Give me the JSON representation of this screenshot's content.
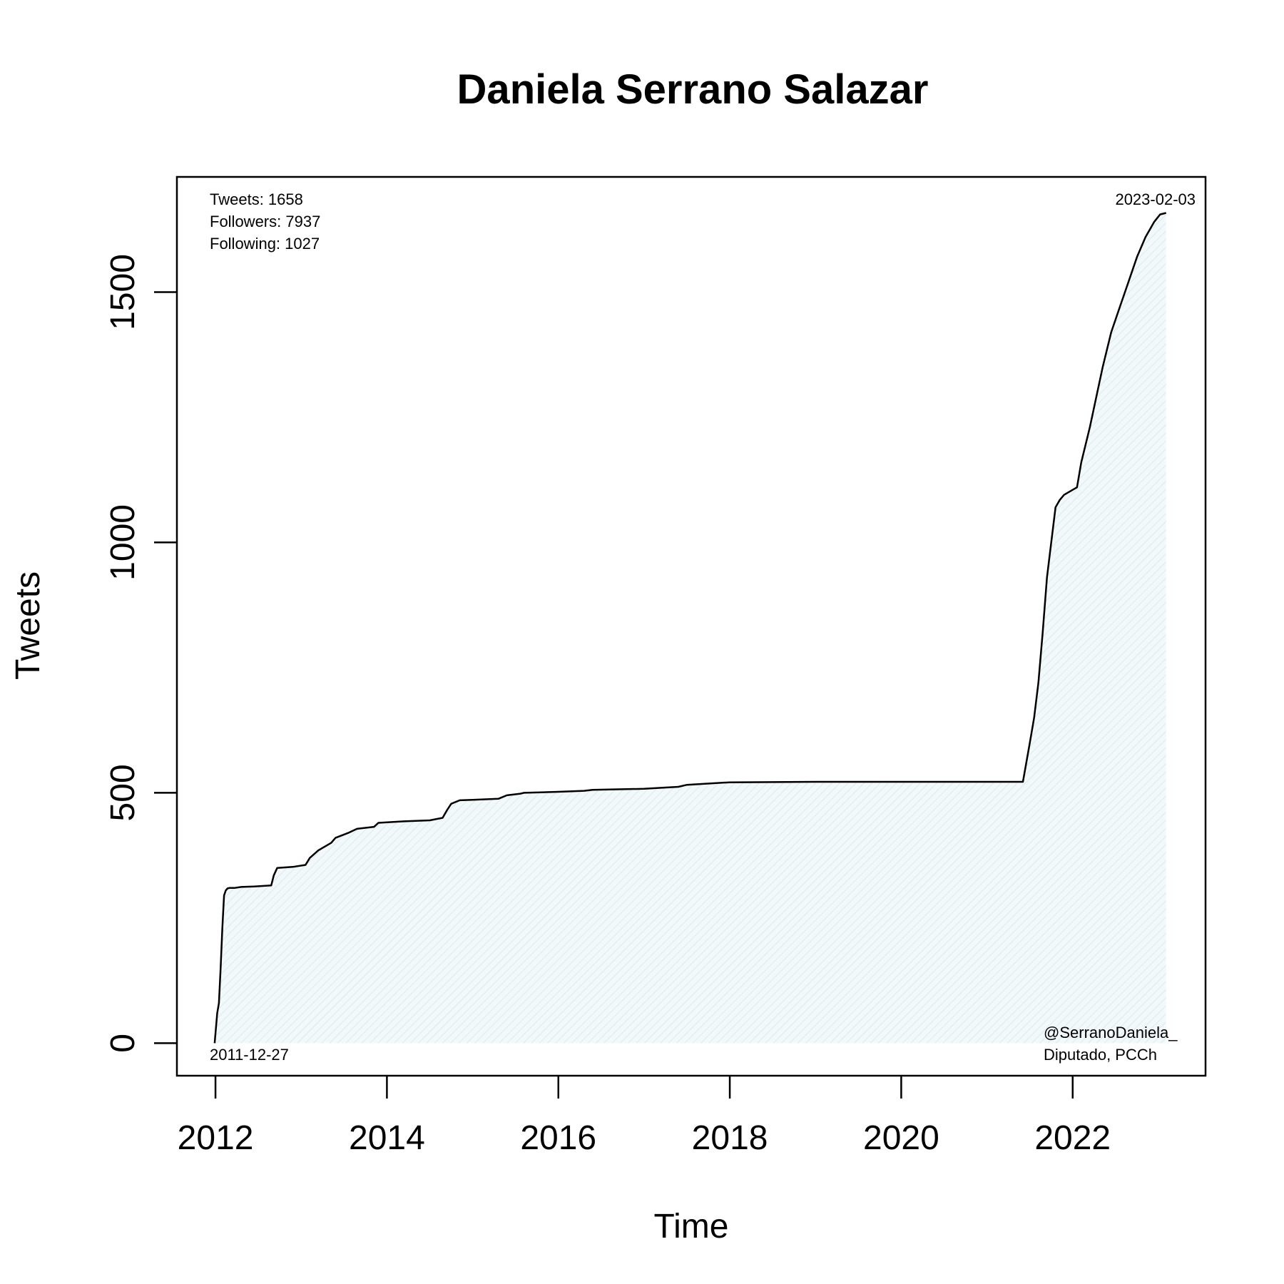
{
  "chart_data": {
    "type": "area",
    "title": "Daniela Serrano Salazar",
    "xlabel": "Time",
    "ylabel": "Tweets",
    "xlim": [
      2011.55,
      2023.55
    ],
    "ylim": [
      -65,
      1730
    ],
    "x_ticks": [
      2012,
      2014,
      2016,
      2018,
      2020,
      2022
    ],
    "x_tick_labels": [
      "2012",
      "2014",
      "2016",
      "2018",
      "2020",
      "2022"
    ],
    "y_ticks": [
      0,
      500,
      1000,
      1500
    ],
    "y_tick_labels": [
      "0",
      "500",
      "1000",
      "1500"
    ],
    "grid": false,
    "line_color": "#000000",
    "fill_color": "#e9f4f6",
    "stats": [
      "Tweets: 1658",
      "Followers: 7937",
      "Following: 1027"
    ],
    "start_label": "2011-12-27",
    "end_label": "2023-02-03",
    "handle": "@SerranoDaniela_",
    "role": "Diputado, PCCh",
    "series": [
      {
        "x": [
          2011.99,
          2012.02,
          2012.04,
          2012.06,
          2012.08,
          2012.1,
          2012.12,
          2012.14,
          2012.16,
          2012.22,
          2012.3,
          2012.45,
          2012.65,
          2012.68,
          2012.72,
          2012.9,
          2013.05,
          2013.1,
          2013.2,
          2013.35,
          2013.4,
          2013.55,
          2013.65,
          2013.85,
          2013.9,
          2014.2,
          2014.5,
          2014.65,
          2014.7,
          2014.75,
          2014.85,
          2015.0,
          2015.3,
          2015.4,
          2015.55,
          2015.6,
          2016.0,
          2016.3,
          2016.4,
          2017.0,
          2017.4,
          2017.5,
          2018.0,
          2019.0,
          2020.0,
          2021.0,
          2021.42,
          2021.5,
          2021.55,
          2021.6,
          2021.65,
          2021.7,
          2021.75,
          2021.8,
          2021.85,
          2021.9,
          2021.95,
          2022.0,
          2022.05,
          2022.1,
          2022.2,
          2022.25,
          2022.3,
          2022.35,
          2022.45,
          2022.55,
          2022.65,
          2022.75,
          2022.85,
          2022.95,
          2023.02,
          2023.09
        ],
        "y": [
          0,
          60,
          80,
          150,
          230,
          295,
          305,
          309,
          310,
          310,
          312,
          313,
          315,
          335,
          350,
          352,
          356,
          370,
          385,
          400,
          410,
          420,
          428,
          432,
          440,
          443,
          445,
          450,
          465,
          478,
          485,
          486,
          488,
          495,
          498,
          500,
          502,
          504,
          506,
          508,
          512,
          516,
          521,
          522,
          522,
          522,
          522,
          600,
          650,
          720,
          820,
          930,
          1000,
          1070,
          1085,
          1095,
          1100,
          1105,
          1110,
          1160,
          1230,
          1270,
          1310,
          1350,
          1420,
          1470,
          1520,
          1570,
          1610,
          1640,
          1655,
          1658
        ]
      }
    ]
  }
}
